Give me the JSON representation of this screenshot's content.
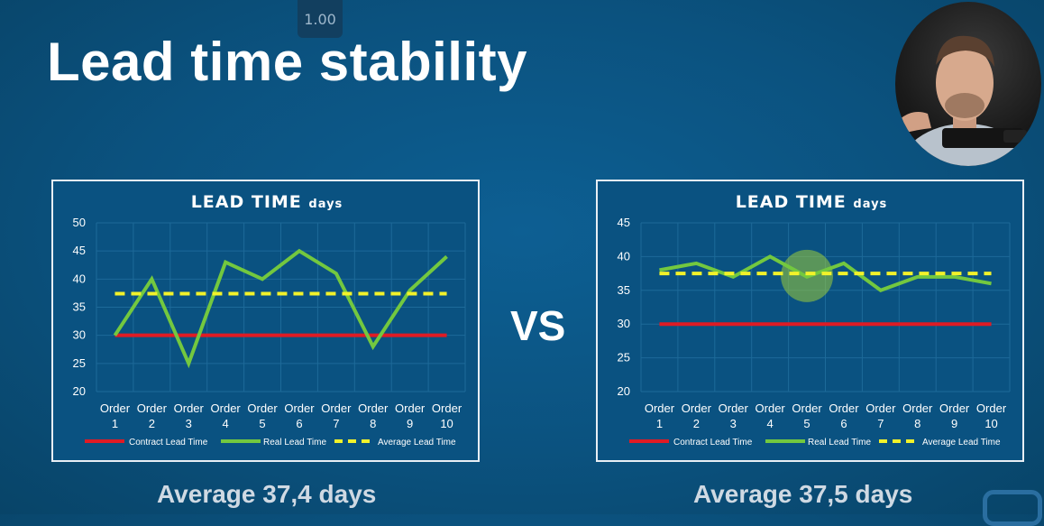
{
  "player": {
    "speed": "1.00"
  },
  "slide": {
    "title": "Lead time stability",
    "vs": "VS",
    "captions": [
      "Average 37,4 days",
      "Average 37,5 days"
    ]
  },
  "colors": {
    "contract": "#e01b24",
    "real": "#73c83f",
    "average": "#f2f22a",
    "plot_bg": "#0a5281",
    "grid": "#1d6a99",
    "text": "#ffffff"
  },
  "chart_data": [
    {
      "type": "line",
      "title": "LEAD TIME",
      "title_unit": "days",
      "categories": [
        "Order 1",
        "Order 2",
        "Order 3",
        "Order 4",
        "Order 5",
        "Order 6",
        "Order 7",
        "Order 8",
        "Order 9",
        "Order 10"
      ],
      "category_lines": [
        [
          "Order",
          "1"
        ],
        [
          "Order",
          "2"
        ],
        [
          "Order",
          "3"
        ],
        [
          "Order",
          "4"
        ],
        [
          "Order",
          "5"
        ],
        [
          "Order",
          "6"
        ],
        [
          "Order",
          "7"
        ],
        [
          "Order",
          "8"
        ],
        [
          "Order",
          "9"
        ],
        [
          "Order",
          "10"
        ]
      ],
      "ylim": [
        20,
        50
      ],
      "yticks": [
        20,
        25,
        30,
        35,
        40,
        45,
        50
      ],
      "grid": true,
      "legend_position": "bottom",
      "series": [
        {
          "name": "Contract Lead Time",
          "style": "solid",
          "color_key": "contract",
          "values": [
            30,
            30,
            30,
            30,
            30,
            30,
            30,
            30,
            30,
            30
          ]
        },
        {
          "name": "Real Lead Time",
          "style": "solid",
          "color_key": "real",
          "values": [
            30,
            40,
            25,
            43,
            40,
            45,
            41,
            28,
            38,
            44
          ]
        },
        {
          "name": "Average Lead Time",
          "style": "dashed",
          "color_key": "average",
          "values": [
            37.4,
            37.4,
            37.4,
            37.4,
            37.4,
            37.4,
            37.4,
            37.4,
            37.4,
            37.4
          ]
        }
      ]
    },
    {
      "type": "line",
      "title": "LEAD TIME",
      "title_unit": "days",
      "categories": [
        "Order 1",
        "Order 2",
        "Order 3",
        "Order 4",
        "Order 5",
        "Order 6",
        "Order 7",
        "Order 8",
        "Order 9",
        "Order 10"
      ],
      "category_lines": [
        [
          "Order",
          "1"
        ],
        [
          "Order",
          "2"
        ],
        [
          "Order",
          "3"
        ],
        [
          "Order",
          "4"
        ],
        [
          "Order",
          "5"
        ],
        [
          "Order",
          "6"
        ],
        [
          "Order",
          "7"
        ],
        [
          "Order",
          "8"
        ],
        [
          "Order",
          "9"
        ],
        [
          "Order",
          "10"
        ]
      ],
      "ylim": [
        20,
        45
      ],
      "yticks": [
        20,
        25,
        30,
        35,
        40,
        45
      ],
      "grid": true,
      "legend_position": "bottom",
      "highlight_category": "Order 5",
      "series": [
        {
          "name": "Contract Lead Time",
          "style": "solid",
          "color_key": "contract",
          "values": [
            30,
            30,
            30,
            30,
            30,
            30,
            30,
            30,
            30,
            30
          ]
        },
        {
          "name": "Real Lead Time",
          "style": "solid",
          "color_key": "real",
          "values": [
            38,
            39,
            37,
            40,
            37,
            39,
            35,
            37,
            37,
            36
          ]
        },
        {
          "name": "Average Lead Time",
          "style": "dashed",
          "color_key": "average",
          "values": [
            37.5,
            37.5,
            37.5,
            37.5,
            37.5,
            37.5,
            37.5,
            37.5,
            37.5,
            37.5
          ]
        }
      ]
    }
  ]
}
